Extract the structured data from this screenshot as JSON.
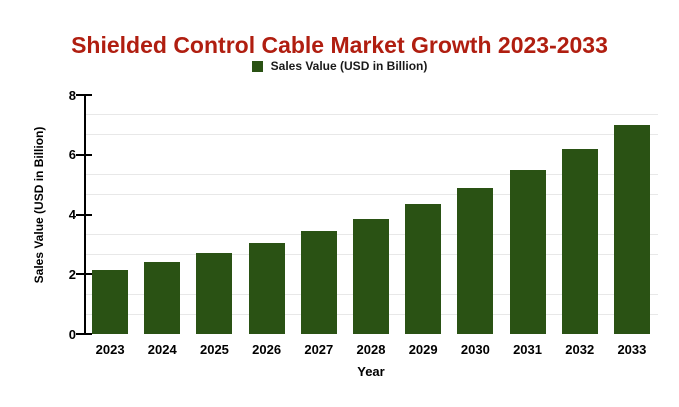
{
  "colors": {
    "title": "#B01E10",
    "bar": "#2A5214",
    "gridline": "#E8E8E8",
    "axis": "#000000"
  },
  "chart_data": {
    "type": "bar",
    "title": "Shielded Control Cable Market Growth 2023-2033",
    "categories": [
      "2023",
      "2024",
      "2025",
      "2026",
      "2027",
      "2028",
      "2029",
      "2030",
      "2031",
      "2032",
      "2033"
    ],
    "series": [
      {
        "name": "Sales Value (USD in Billion)",
        "values": [
          2.15,
          2.4,
          2.7,
          3.05,
          3.45,
          3.85,
          4.35,
          4.9,
          5.5,
          6.2,
          7.0
        ]
      }
    ],
    "xlabel": "Year",
    "ylabel": "Sales Value (USD in Billion)",
    "ylim": [
      0,
      8
    ],
    "yticks": [
      0,
      2,
      4,
      6,
      8
    ],
    "minor_gridlines": [
      0.6667,
      1.3333,
      2.6667,
      3.3333,
      4.6667,
      5.3333,
      6.6667,
      7.3333
    ],
    "grid": "minor-horizontal-only",
    "legend_position": "top-center",
    "bar_color": "#2A5214"
  }
}
